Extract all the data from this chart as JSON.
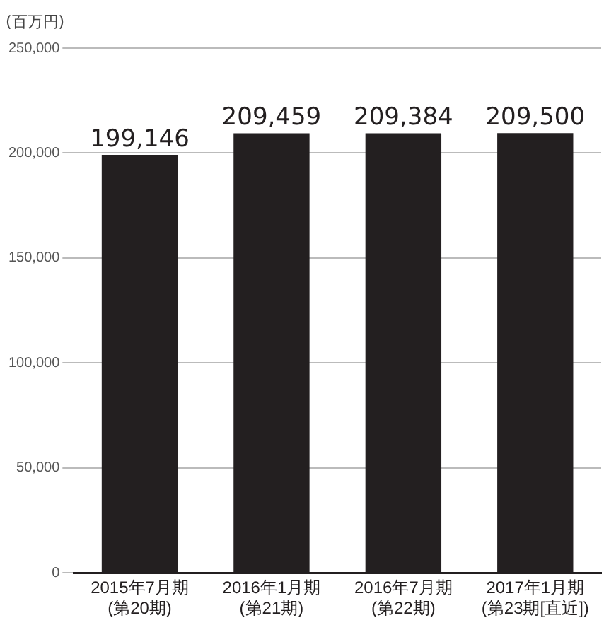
{
  "chart_data": {
    "type": "bar",
    "ylabel": "(百万円)",
    "categories": [
      "2015年7月期\n(第20期)",
      "2016年1月期\n(第21期)",
      "2016年7月期\n(第22期)",
      "2017年1月期\n(第23期[直近])"
    ],
    "values": [
      199146,
      209459,
      209384,
      209500
    ],
    "value_labels": [
      "199,146",
      "209,459",
      "209,384",
      "209,500"
    ],
    "color": "#231f20",
    "ylim": [
      0,
      250000
    ],
    "yticks": [
      0,
      {
        "value": 50000,
        "label": "50,000"
      },
      {
        "value": 100000,
        "label": "100,000"
      },
      {
        "value": 150000,
        "label": "150,000"
      },
      {
        "value": 200000,
        "label": "200,000"
      },
      {
        "value": 250000,
        "label": "250,000"
      }
    ],
    "grid": "y",
    "legend": false
  }
}
